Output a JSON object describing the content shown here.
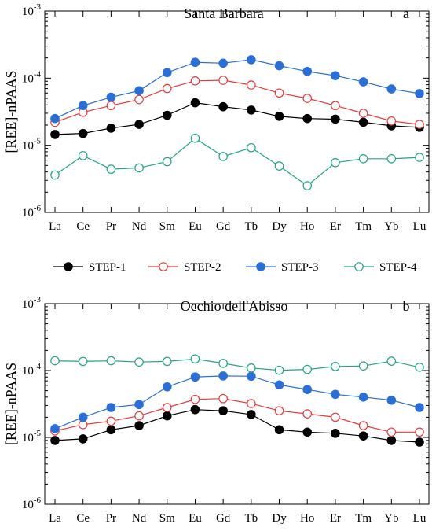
{
  "legend": [
    {
      "label": "STEP-1",
      "color": "#000000",
      "filled": true
    },
    {
      "label": "STEP-2",
      "color": "#e8393b",
      "filled": false
    },
    {
      "label": "STEP-3",
      "color": "#2a6fd6",
      "filled": true
    },
    {
      "label": "STEP-4",
      "color": "#23a487",
      "filled": false
    }
  ],
  "chart_data": [
    {
      "type": "line",
      "title": "Santa Barbara",
      "panel_label": "a",
      "ylabel": "[REE]-nPAAS",
      "yscale": "log",
      "ylim": [
        1e-06,
        0.001
      ],
      "y_ticks": [
        {
          "value": 0.001,
          "base": "10",
          "exp": "-3"
        },
        {
          "value": 0.0001,
          "base": "10",
          "exp": "-4"
        },
        {
          "value": 1e-05,
          "base": "10",
          "exp": "-5"
        },
        {
          "value": 1e-06,
          "base": "10",
          "exp": "-6"
        }
      ],
      "categories": [
        "La",
        "Ce",
        "Pr",
        "Nd",
        "Sm",
        "Eu",
        "Gd",
        "Tb",
        "Dy",
        "Ho",
        "Er",
        "Tm",
        "Yb",
        "Lu"
      ],
      "series": [
        {
          "name": "STEP-1",
          "values": [
            1.45e-05,
            1.5e-05,
            1.8e-05,
            2.05e-05,
            2.8e-05,
            4.3e-05,
            3.75e-05,
            3.35e-05,
            2.7e-05,
            2.5e-05,
            2.45e-05,
            2.2e-05,
            1.95e-05,
            1.85e-05
          ]
        },
        {
          "name": "STEP-2",
          "values": [
            2.2e-05,
            3.1e-05,
            3.9e-05,
            4.8e-05,
            7e-05,
            9.1e-05,
            9.3e-05,
            7.9e-05,
            6e-05,
            5e-05,
            3.9e-05,
            3e-05,
            2.3e-05,
            2.05e-05
          ]
        },
        {
          "name": "STEP-3",
          "values": [
            2.5e-05,
            3.9e-05,
            5.2e-05,
            6.5e-05,
            0.000121,
            0.000172,
            0.000167,
            0.000188,
            0.000153,
            0.000126,
            0.000109,
            8.8e-05,
            6.9e-05,
            5.9e-05
          ]
        },
        {
          "name": "STEP-4",
          "values": [
            3.6e-06,
            7e-06,
            4.4e-06,
            4.6e-06,
            5.7e-06,
            1.27e-05,
            6.8e-06,
            9.2e-06,
            4.9e-06,
            2.5e-06,
            5.5e-06,
            6.3e-06,
            6.3e-06,
            6.6e-06
          ]
        }
      ]
    },
    {
      "type": "line",
      "title": "Occhio dell'Abisso",
      "panel_label": "b",
      "ylabel": "[REE]-nPAAS",
      "yscale": "log",
      "ylim": [
        1e-06,
        0.001
      ],
      "y_ticks": [
        {
          "value": 0.001,
          "base": "10",
          "exp": "-3"
        },
        {
          "value": 0.0001,
          "base": "10",
          "exp": "-4"
        },
        {
          "value": 1e-05,
          "base": "10",
          "exp": "-5"
        },
        {
          "value": 1e-06,
          "base": "10",
          "exp": "-6"
        }
      ],
      "categories": [
        "La",
        "Ce",
        "Pr",
        "Nd",
        "Sm",
        "Eu",
        "Gd",
        "Tb",
        "Dy",
        "Ho",
        "Er",
        "Tm",
        "Yb",
        "Lu"
      ],
      "series": [
        {
          "name": "STEP-1",
          "values": [
            9e-06,
            9.5e-06,
            1.3e-05,
            1.5e-05,
            2.1e-05,
            2.6e-05,
            2.5e-05,
            2.2e-05,
            1.3e-05,
            1.2e-05,
            1.15e-05,
            1.05e-05,
            9e-06,
            8.5e-06
          ]
        },
        {
          "name": "STEP-2",
          "values": [
            1.25e-05,
            1.55e-05,
            1.75e-05,
            2.1e-05,
            2.8e-05,
            3.7e-05,
            3.8e-05,
            3.2e-05,
            2.5e-05,
            2.25e-05,
            2e-05,
            1.5e-05,
            1.2e-05,
            1.2e-05
          ]
        },
        {
          "name": "STEP-3",
          "values": [
            1.35e-05,
            2e-05,
            2.8e-05,
            3.1e-05,
            5.7e-05,
            8e-05,
            8.3e-05,
            8.2e-05,
            6.1e-05,
            5.2e-05,
            4.4e-05,
            4e-05,
            3.6e-05,
            2.8e-05
          ]
        },
        {
          "name": "STEP-4",
          "values": [
            0.00014,
            0.000137,
            0.00014,
            0.000134,
            0.000137,
            0.000149,
            0.000128,
            0.000109,
            0.000101,
            0.000104,
            0.000115,
            0.000117,
            0.000138,
            0.000112
          ]
        }
      ]
    }
  ]
}
